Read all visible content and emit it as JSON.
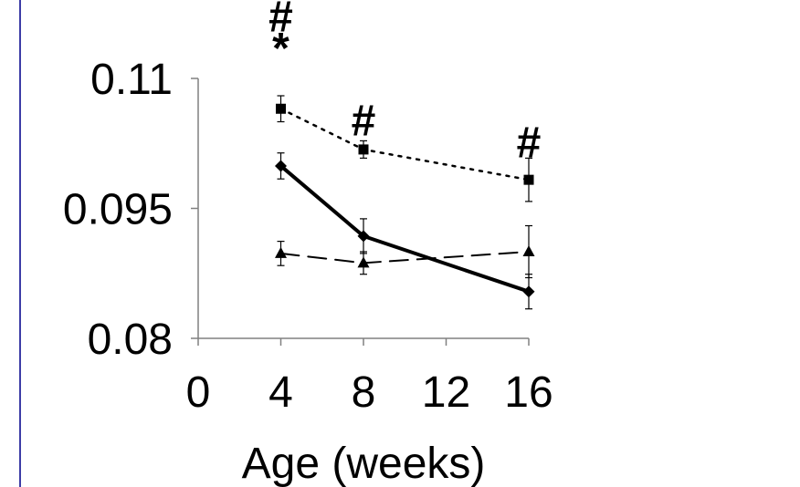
{
  "chart_data": {
    "type": "line",
    "title": "",
    "xlabel": "Age (weeks)",
    "ylabel": "",
    "xlim": [
      0,
      16
    ],
    "ylim": [
      0.08,
      0.11
    ],
    "x_ticks": [
      0,
      4,
      8,
      12,
      16
    ],
    "y_ticks": [
      0.08,
      0.095,
      0.11
    ],
    "x_tick_labels": [
      "0",
      "4",
      "8",
      "12",
      "16"
    ],
    "y_tick_labels": [
      "0.08",
      "0.095",
      "0.11"
    ],
    "grid": false,
    "legend": "none",
    "series": [
      {
        "style": "dotted",
        "marker": "square",
        "color": "#000000",
        "x": [
          4,
          8,
          16
        ],
        "y": [
          0.1065,
          0.1018,
          0.0983
        ],
        "err": [
          0.0015,
          0.001,
          0.0025
        ]
      },
      {
        "style": "solid",
        "marker": "diamond",
        "color": "#000000",
        "x": [
          4,
          8,
          16
        ],
        "y": [
          0.0999,
          0.0918,
          0.0854
        ],
        "err": [
          0.0015,
          0.002,
          0.002
        ]
      },
      {
        "style": "dashed",
        "marker": "triangle",
        "color": "#000000",
        "x": [
          4,
          8,
          16
        ],
        "y": [
          0.0898,
          0.0887,
          0.09
        ],
        "err": [
          0.0014,
          0.0013,
          0.003
        ]
      }
    ],
    "annotations": [
      {
        "x": 4,
        "y": 0.1136,
        "text": "*"
      },
      {
        "x": 4,
        "y": 0.1172,
        "text": "#"
      },
      {
        "x": 8,
        "y": 0.1052,
        "text": "#"
      },
      {
        "x": 16,
        "y": 0.1027,
        "text": "#"
      }
    ]
  }
}
